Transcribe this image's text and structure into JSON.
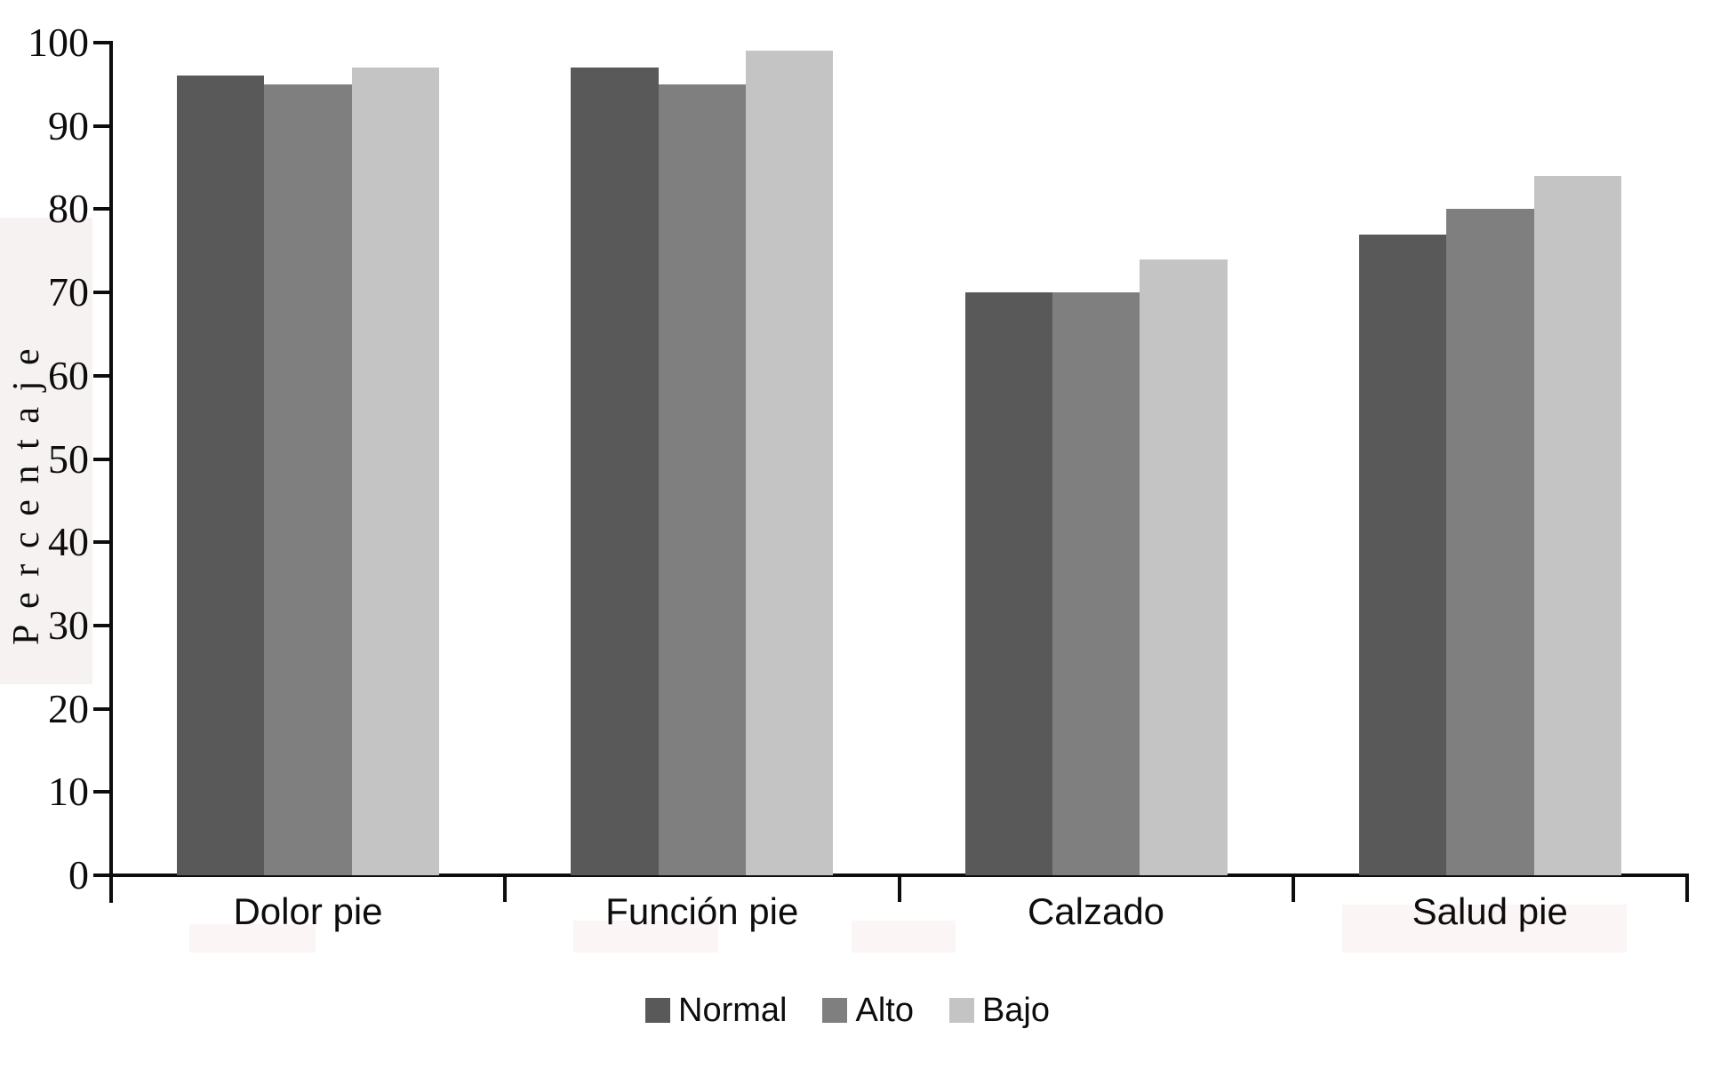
{
  "chart_data": {
    "type": "bar",
    "title": "",
    "xlabel": "",
    "ylabel": "Percentaje",
    "categories": [
      "Dolor pie",
      "Función pie",
      "Calzado",
      "Salud pie"
    ],
    "series": [
      {
        "name": "Normal",
        "color": "#595959",
        "values": [
          96,
          97,
          70,
          77
        ]
      },
      {
        "name": "Alto",
        "color": "#7f7f7f",
        "values": [
          95,
          95,
          70,
          80
        ]
      },
      {
        "name": "Bajo",
        "color": "#c4c4c4",
        "values": [
          97,
          99,
          74,
          84
        ]
      }
    ],
    "ylim": [
      0,
      100
    ],
    "yticks": [
      0,
      10,
      20,
      30,
      40,
      50,
      60,
      70,
      80,
      90,
      100
    ],
    "grid": false,
    "legend_position": "bottom",
    "axis_color": "#0d0d0d",
    "background_color": "#ffffff"
  }
}
